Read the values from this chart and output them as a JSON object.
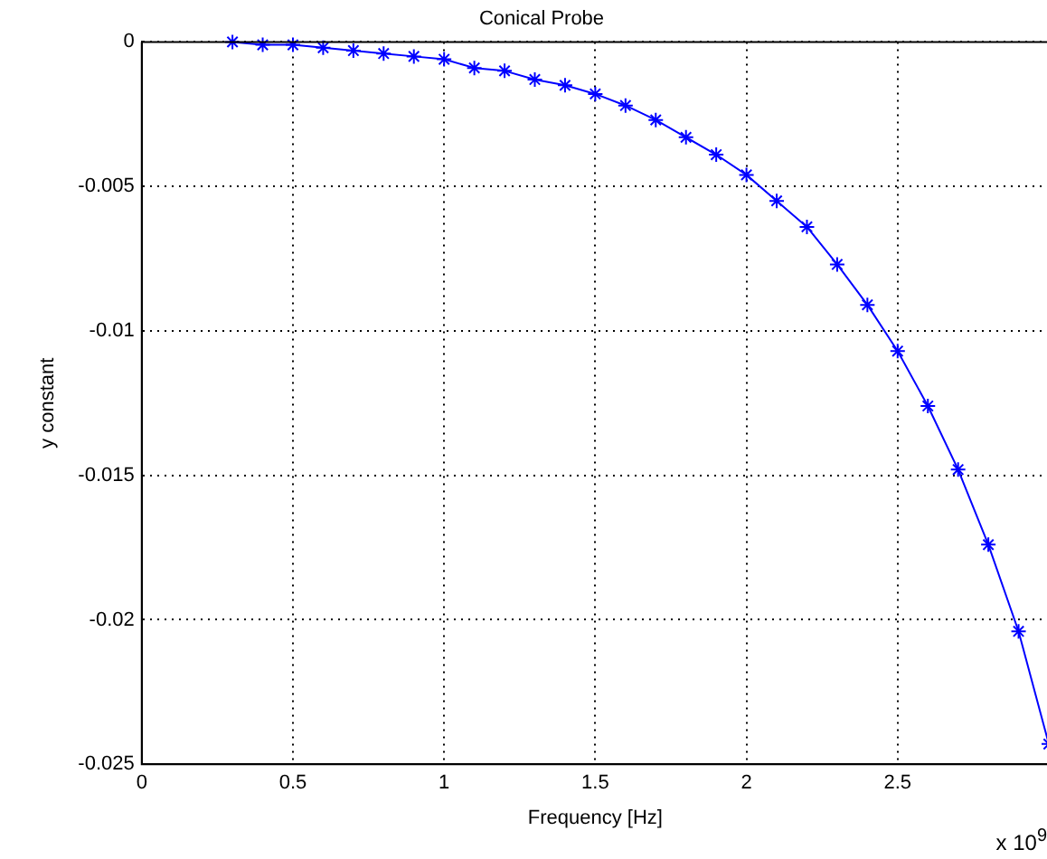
{
  "chart_data": {
    "type": "line",
    "title": "Conical Probe",
    "xlabel": "Frequency [Hz]",
    "ylabel": "y constant",
    "annotations": [
      "x 10$^{9}$"
    ],
    "x": [
      0.3,
      0.4,
      0.5,
      0.6,
      0.7,
      0.8,
      0.9,
      1.0,
      1.1,
      1.2,
      1.3,
      1.4,
      1.5,
      1.6,
      1.7,
      1.8,
      1.9,
      2.0,
      2.1,
      2.2,
      2.3,
      2.4,
      2.5,
      2.6,
      2.7,
      2.8,
      2.9,
      3.0
    ],
    "series": [
      {
        "color": "#0000ff",
        "values": [
          0,
          -0.0001,
          -0.0001,
          -0.0002,
          -0.0003,
          -0.0004,
          -0.0005,
          -0.0006,
          -0.0009,
          -0.001,
          -0.0013,
          -0.0015,
          -0.0018,
          -0.0022,
          -0.0027,
          -0.0033,
          -0.0039,
          -0.0046,
          -0.0055,
          -0.0064,
          -0.0077,
          -0.0091,
          -0.0107,
          -0.0126,
          -0.0148,
          -0.0174,
          -0.0204,
          -0.0243
        ]
      }
    ],
    "xlim": [
      0,
      3
    ],
    "xticks": [
      0,
      0.5,
      1,
      1.5,
      2,
      2.5
    ],
    "ylim": [
      -0.025,
      0
    ],
    "yticks": [
      0,
      -0.005,
      -0.01,
      -0.015,
      -0.02,
      -0.025
    ],
    "grid": true,
    "marker": "cross",
    "line_style": "solid",
    "legend": false
  }
}
